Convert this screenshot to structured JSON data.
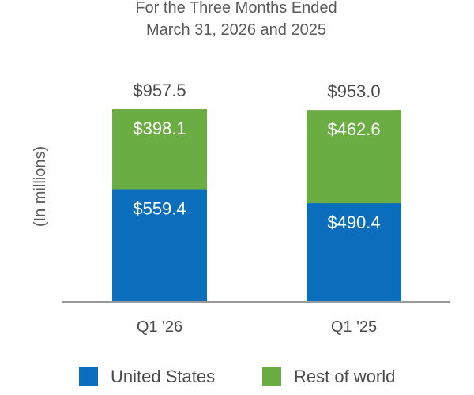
{
  "chart_data": {
    "type": "bar",
    "stacked": true,
    "title": [
      "For the Three Months Ended",
      "March 31, 2026 and 2025"
    ],
    "ylabel": "(In millions)",
    "categories": [
      "Q1 '26",
      "Q1 '25"
    ],
    "series": [
      {
        "name": "United States",
        "color": "#0a6ebd",
        "values": [
          559.4,
          490.4
        ],
        "labels": [
          "$559.4",
          "$490.4"
        ]
      },
      {
        "name": "Rest of world",
        "color": "#6aad43",
        "values": [
          398.1,
          462.6
        ],
        "labels": [
          "$398.1",
          "$462.6"
        ]
      }
    ],
    "totals": [
      957.5,
      953.0
    ],
    "total_labels": [
      "$957.5",
      "$953.0"
    ],
    "ylim": [
      0,
      957.5
    ],
    "grid": false,
    "legend_position": "bottom"
  }
}
